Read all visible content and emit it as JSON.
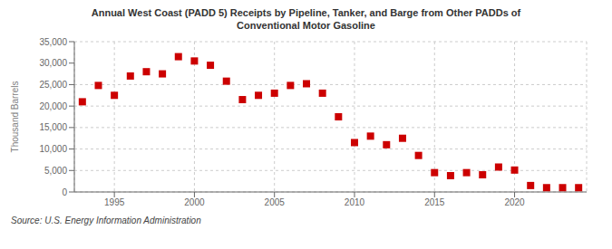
{
  "chart_data": {
    "type": "scatter",
    "title": "Annual West Coast (PADD 5) Receipts by Pipeline, Tanker, and Barge from Other PADDs of\nConventional Motor Gasoline",
    "ylabel": "Thousand Barrels",
    "source": "Source: U.S. Energy Information Administration",
    "color": "#cc0000",
    "marker": "square",
    "grid": true,
    "xlim": [
      1992.5,
      2024.5
    ],
    "xticks": [
      1995,
      2000,
      2005,
      2010,
      2015,
      2020
    ],
    "ylim": [
      0,
      35000
    ],
    "yticks": [
      0,
      {
        "value": 5000,
        "label": "5,000"
      },
      {
        "value": 10000,
        "label": "10,000"
      },
      {
        "value": 15000,
        "label": "15,000"
      },
      {
        "value": 20000,
        "label": "20,000"
      },
      {
        "value": 25000,
        "label": "25,000"
      },
      {
        "value": 30000,
        "label": "30,000"
      },
      {
        "value": 35000,
        "label": "35,000"
      }
    ],
    "x": [
      1993,
      1994,
      1995,
      1996,
      1997,
      1998,
      1999,
      2000,
      2001,
      2002,
      2003,
      2004,
      2005,
      2006,
      2007,
      2008,
      2009,
      2010,
      2011,
      2012,
      2013,
      2014,
      2015,
      2016,
      2017,
      2018,
      2019,
      2020,
      2021,
      2022,
      2023,
      2024
    ],
    "values": [
      21000,
      24800,
      22500,
      27000,
      28000,
      27500,
      31500,
      30500,
      29500,
      25800,
      21500,
      22500,
      23000,
      24800,
      25200,
      23000,
      17500,
      11500,
      13000,
      11000,
      12500,
      8500,
      4500,
      3800,
      4500,
      4000,
      5800,
      5100,
      1500,
      1000,
      1000,
      1000
    ]
  }
}
